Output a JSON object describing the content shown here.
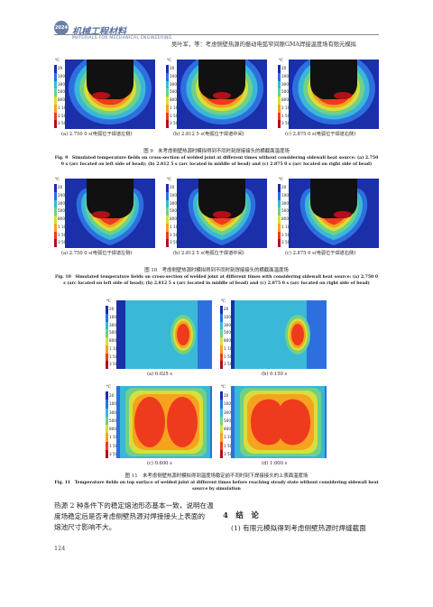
{
  "header": {
    "badge": "2024",
    "journal_cn": "机械工程材料",
    "journal_en": "MATERIALS FOR MECHANICAL ENGINEERING",
    "running_head": "吴叶军，等：考虑侧壁热源的振动电弧窄间隙GMA焊接温度场有限元模拟"
  },
  "legend_labels": [
    "20",
    "100",
    "300",
    "500",
    "800",
    "1 100",
    "1 500",
    "3 500"
  ],
  "legend_colors": [
    "#1a2fa8",
    "#2e6fe0",
    "#39b8d8",
    "#6fd08a",
    "#d6df3a",
    "#f7a21e",
    "#ee3b1e",
    "#b0101a"
  ],
  "legend_unit": "℃",
  "fig9": {
    "panels": [
      {
        "caption": "(a) 2.750 0 s(电弧位于焊道左侧)"
      },
      {
        "caption": "(b) 2.812 5 s(电弧位于焊道中间)"
      },
      {
        "caption": "(c) 2.875 0 s(电弧位于焊道右侧)"
      }
    ],
    "caption_cn": "图 9　未考虑侧壁热源时模拟得到不同时刻焊接接头的横截面温度场",
    "caption_en": "Fig. 9　Simulated temperature fields on cross-section of welded joint at different times without considering sidewall heat source: (a) 2.750 0 s (arc located on left side of bead); (b) 2.812 5 s (arc located in middle of bead) and (c) 2.875 0 s (arc located on right side of bead)"
  },
  "fig10": {
    "panels": [
      {
        "caption": "(a) 2.750 0 s(电弧位于焊道左侧)"
      },
      {
        "caption": "(b) 2.812 5 s(电弧位于焊道中间)"
      },
      {
        "caption": "(c) 2.875 0 s(电弧位于焊道右侧)"
      }
    ],
    "caption_cn": "图 10　考虑侧壁热源时模拟得到不同时刻焊接接头的横截面温度场",
    "caption_en": "Fig. 10　Simulated temperature fields on cross-section of welded joint at different times with considering sidewall heat source: (a) 2.750 0 s (arc located on left side of bead); (b) 2.812 5 s (arc located in middle of bead) and (c) 2.875 0 s (arc located on right side of bead)"
  },
  "fig11": {
    "panels": [
      {
        "caption": "(a) 0.025 s"
      },
      {
        "caption": "(b) 0.150 s"
      },
      {
        "caption": "(c) 0.600 s"
      },
      {
        "caption": "(d) 1.000 s"
      }
    ],
    "caption_cn": "图 11　未考虑侧壁热源时模拟得到温度场稳定前不同时刻下焊接接头的上表面温度场",
    "caption_en": "Fig. 11　Temperature fields on top surface of welded joint at different times before reaching steady state without considering sidewall heat source by simulation"
  },
  "body": {
    "left_lines": [
      "热源 2 种条件下的稳定熔池形态基本一致，说明在温",
      "度场稳定后是否考虑侧壁热源对焊接接头上表面的",
      "熔池尺寸影响不大。"
    ],
    "section_title": "4　结　论",
    "right_line": "(1) 有限元模拟得到考虑侧壁热源时焊缝截面"
  },
  "page_number": "124"
}
